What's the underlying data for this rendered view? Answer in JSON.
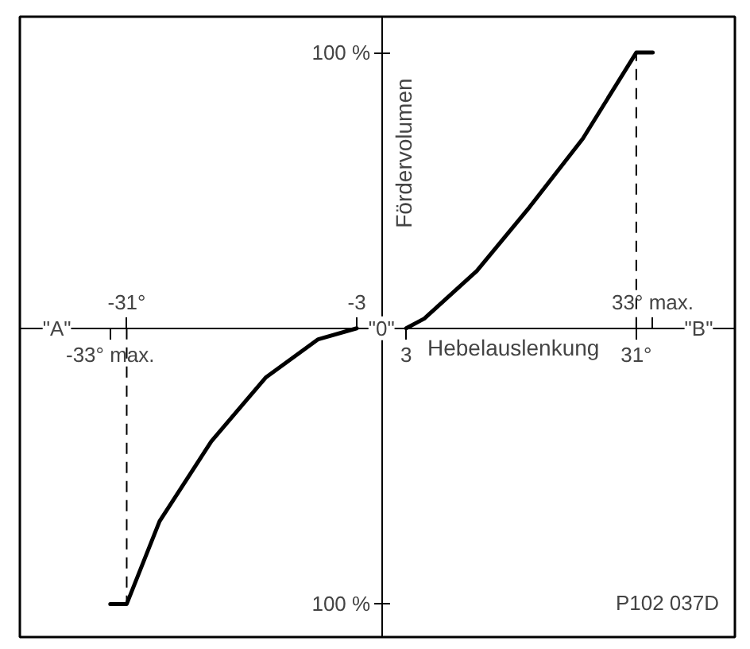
{
  "chart_data": {
    "type": "line",
    "xlabel": "Hebelauslenkung",
    "ylabel": "Fördervolumen",
    "xlim": [
      -44,
      43
    ],
    "ylim": [
      -112,
      113
    ],
    "xticks": [
      {
        "value": -33,
        "label": "-33° max."
      },
      {
        "value": 3,
        "label": "3"
      },
      {
        "value": 31,
        "label": "31°"
      }
    ],
    "x2lim": [
      -44,
      43
    ],
    "x2ticks": [
      {
        "value": -31,
        "label": "-31°"
      },
      {
        "value": -3,
        "label": "-3"
      },
      {
        "value": 33,
        "label": "33° max."
      }
    ],
    "yticks": [
      {
        "value": -100,
        "label": "100 %"
      },
      {
        "value": 100,
        "label": "100 %"
      }
    ],
    "series": [
      {
        "color": "#000000",
        "x": [
          -33,
          -31,
          -27,
          -20.7,
          -14.1,
          -7.7,
          -3
        ],
        "values": [
          -100,
          -100,
          -70,
          -41,
          -17.9,
          -4,
          0
        ]
      },
      {
        "color": "#000000",
        "x": [
          3,
          5.2,
          11.6,
          18,
          24.5,
          31,
          33
        ],
        "values": [
          0,
          3.5,
          20.8,
          43.9,
          68.8,
          100,
          100
        ]
      }
    ],
    "ref_lines": [
      {
        "axis": "x",
        "value": -31,
        "line_style": "dashed",
        "color": "#000000"
      },
      {
        "axis": "x",
        "value": 31,
        "line_style": "dashed",
        "color": "#000000"
      }
    ],
    "annotations": [
      {
        "text": "\"A\"",
        "x": -39.5,
        "y": 0
      },
      {
        "text": "\"0\"",
        "x": 0,
        "y": 0
      },
      {
        "text": "\"B\"",
        "x": 38.6,
        "y": 0
      },
      "P102 037D"
    ],
    "grid": false,
    "marker": "none",
    "line_style": "solid"
  }
}
